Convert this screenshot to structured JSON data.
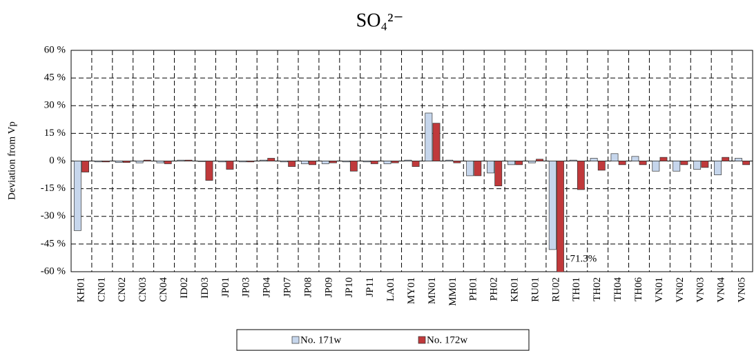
{
  "chart_data": {
    "type": "bar",
    "title": "SO₄²⁻",
    "y_label": "Deviation from Vp",
    "categories": [
      "KH01",
      "CN01",
      "CN02",
      "CN03",
      "CN04",
      "ID02",
      "ID03",
      "JP01",
      "JP03",
      "JP04",
      "JP07",
      "JP08",
      "JP09",
      "JP10",
      "JP11",
      "LA01",
      "MY01",
      "MN01",
      "MM01",
      "PH01",
      "PH02",
      "KR01",
      "RU01",
      "RU02",
      "TH01",
      "TH02",
      "TH04",
      "TH06",
      "VN01",
      "VN02",
      "VN03",
      "VN04",
      "VN05"
    ],
    "series": [
      {
        "name": "No. 171w",
        "color": "#c6d6ec",
        "values": [
          -37.7,
          -0.5,
          -0.8,
          -1,
          -1,
          0.5,
          -0.3,
          -0.5,
          -0.5,
          0.5,
          -0.5,
          -1.5,
          -1.5,
          -0.5,
          -0.5,
          -1.5,
          0.5,
          26,
          0.5,
          -8,
          -6.5,
          -2,
          -1,
          -48,
          0.5,
          1.5,
          4,
          2.5,
          -5.5,
          -5.5,
          -4.5,
          -7.5,
          1.5
        ]
      },
      {
        "name": "No. 172w",
        "color": "#c0393b",
        "values": [
          -6,
          -0.5,
          -0.8,
          0.5,
          -1.5,
          0.5,
          -10.5,
          -4.5,
          -0.5,
          1.5,
          -3,
          -2,
          -1,
          -5.5,
          -1.5,
          -1,
          -3,
          20.5,
          -1,
          -8,
          -13.5,
          -2,
          1,
          -71.3,
          -15.5,
          -5,
          -2,
          -2,
          2,
          -2,
          -3.5,
          2,
          -2
        ],
        "value_labels": [
          null,
          null,
          null,
          null,
          null,
          null,
          null,
          null,
          null,
          null,
          null,
          null,
          null,
          null,
          null,
          null,
          null,
          null,
          null,
          null,
          null,
          null,
          null,
          "-71.3%",
          null,
          null,
          null,
          null,
          null,
          null,
          null,
          null,
          null
        ]
      }
    ],
    "ylim": [
      -60,
      60
    ],
    "yticks": [
      {
        "value": -60,
        "label": "-60 %"
      },
      {
        "value": -45,
        "label": "-45 %"
      },
      {
        "value": -30,
        "label": "-30 %"
      },
      {
        "value": -15,
        "label": "-15 %"
      },
      {
        "value": 0,
        "label": "0 %"
      },
      {
        "value": 15,
        "label": "15 %"
      },
      {
        "value": 30,
        "label": "30 %"
      },
      {
        "value": 45,
        "label": "45 %"
      },
      {
        "value": 60,
        "label": "60 %"
      }
    ],
    "grid": true
  }
}
